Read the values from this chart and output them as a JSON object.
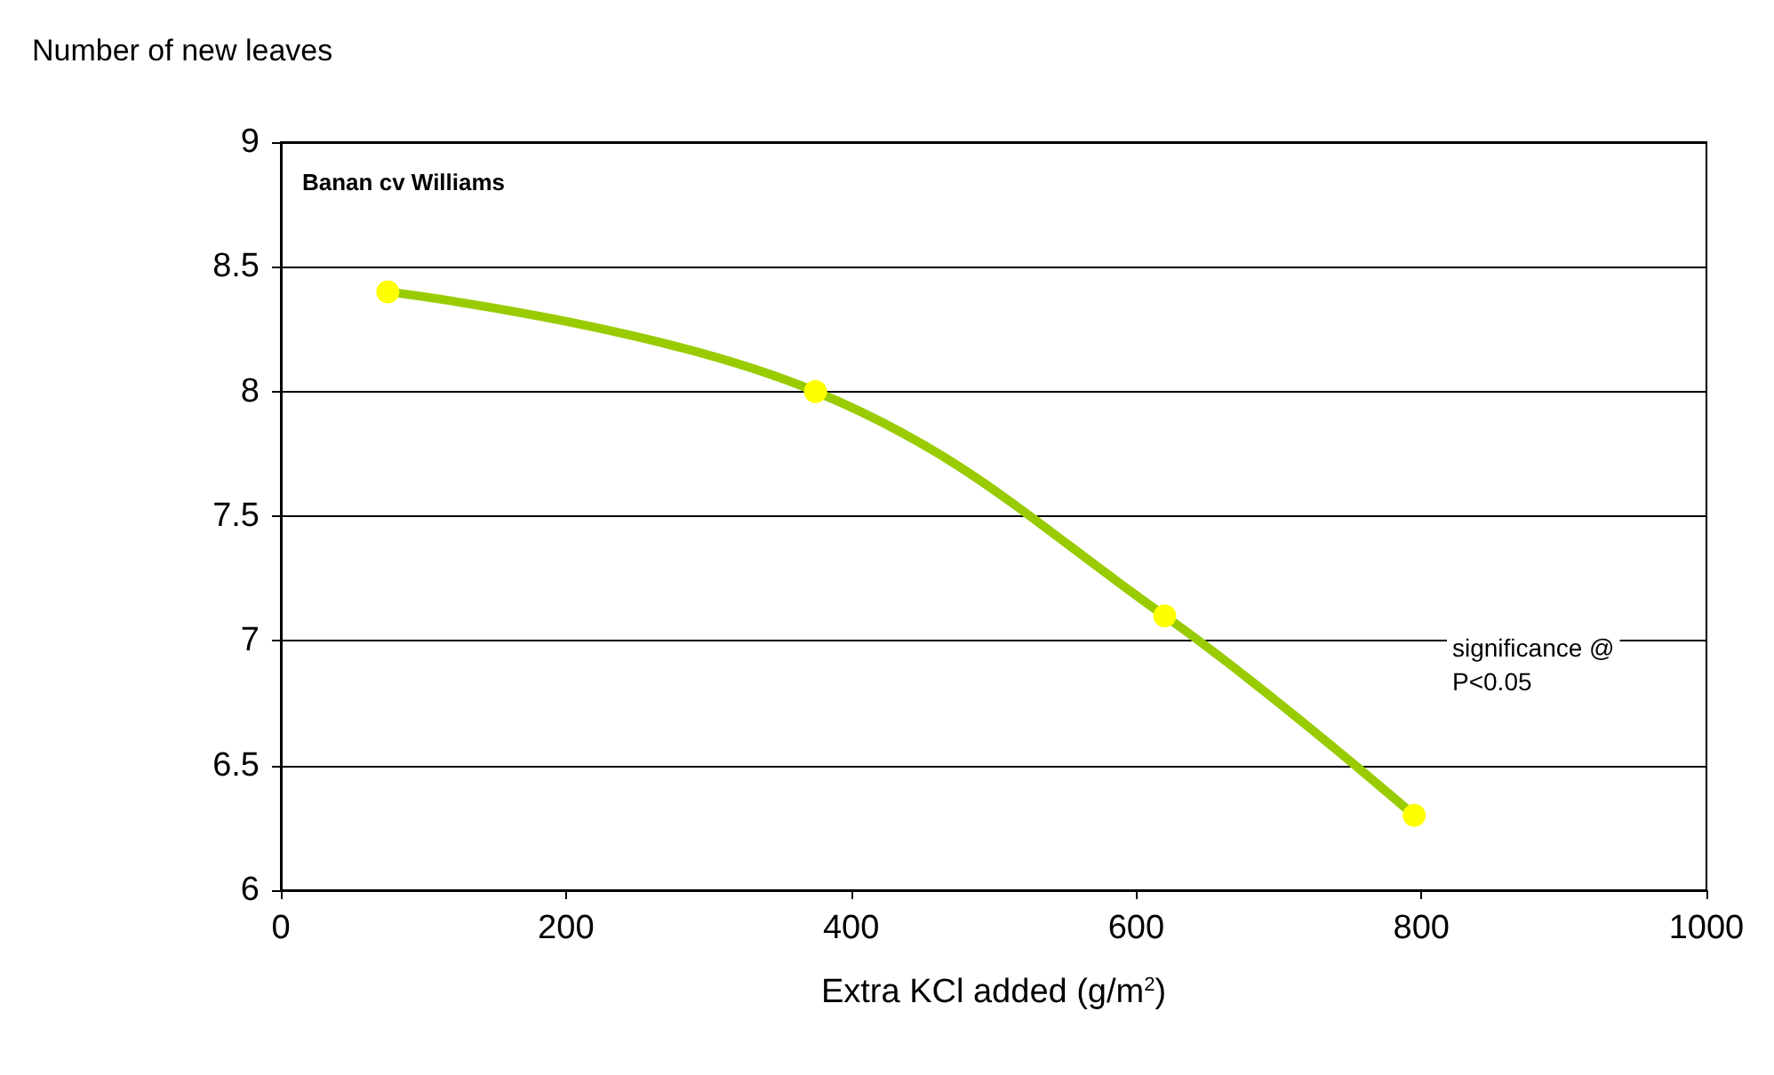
{
  "chart_data": {
    "type": "line",
    "ylabel": "Number of new leaves",
    "xlabel": "Extra KCl added (g/m$^{2}$)",
    "annotations": [
      "Banan cv Williams",
      "significance @\nP<0.05"
    ],
    "x": [
      75,
      375,
      620,
      795
    ],
    "series": [
      {
        "color": "#99cc00",
        "values": [
          8.4,
          8.0,
          7.1,
          6.3
        ]
      }
    ],
    "marker": "circle",
    "xlim": [
      0,
      1000
    ],
    "xticks": [
      0,
      200,
      400,
      600,
      800,
      1000
    ],
    "ylim": [
      6,
      9
    ],
    "yticks": [
      6,
      6.5,
      7,
      7.5,
      8,
      8.5,
      9
    ],
    "grid": "y"
  }
}
